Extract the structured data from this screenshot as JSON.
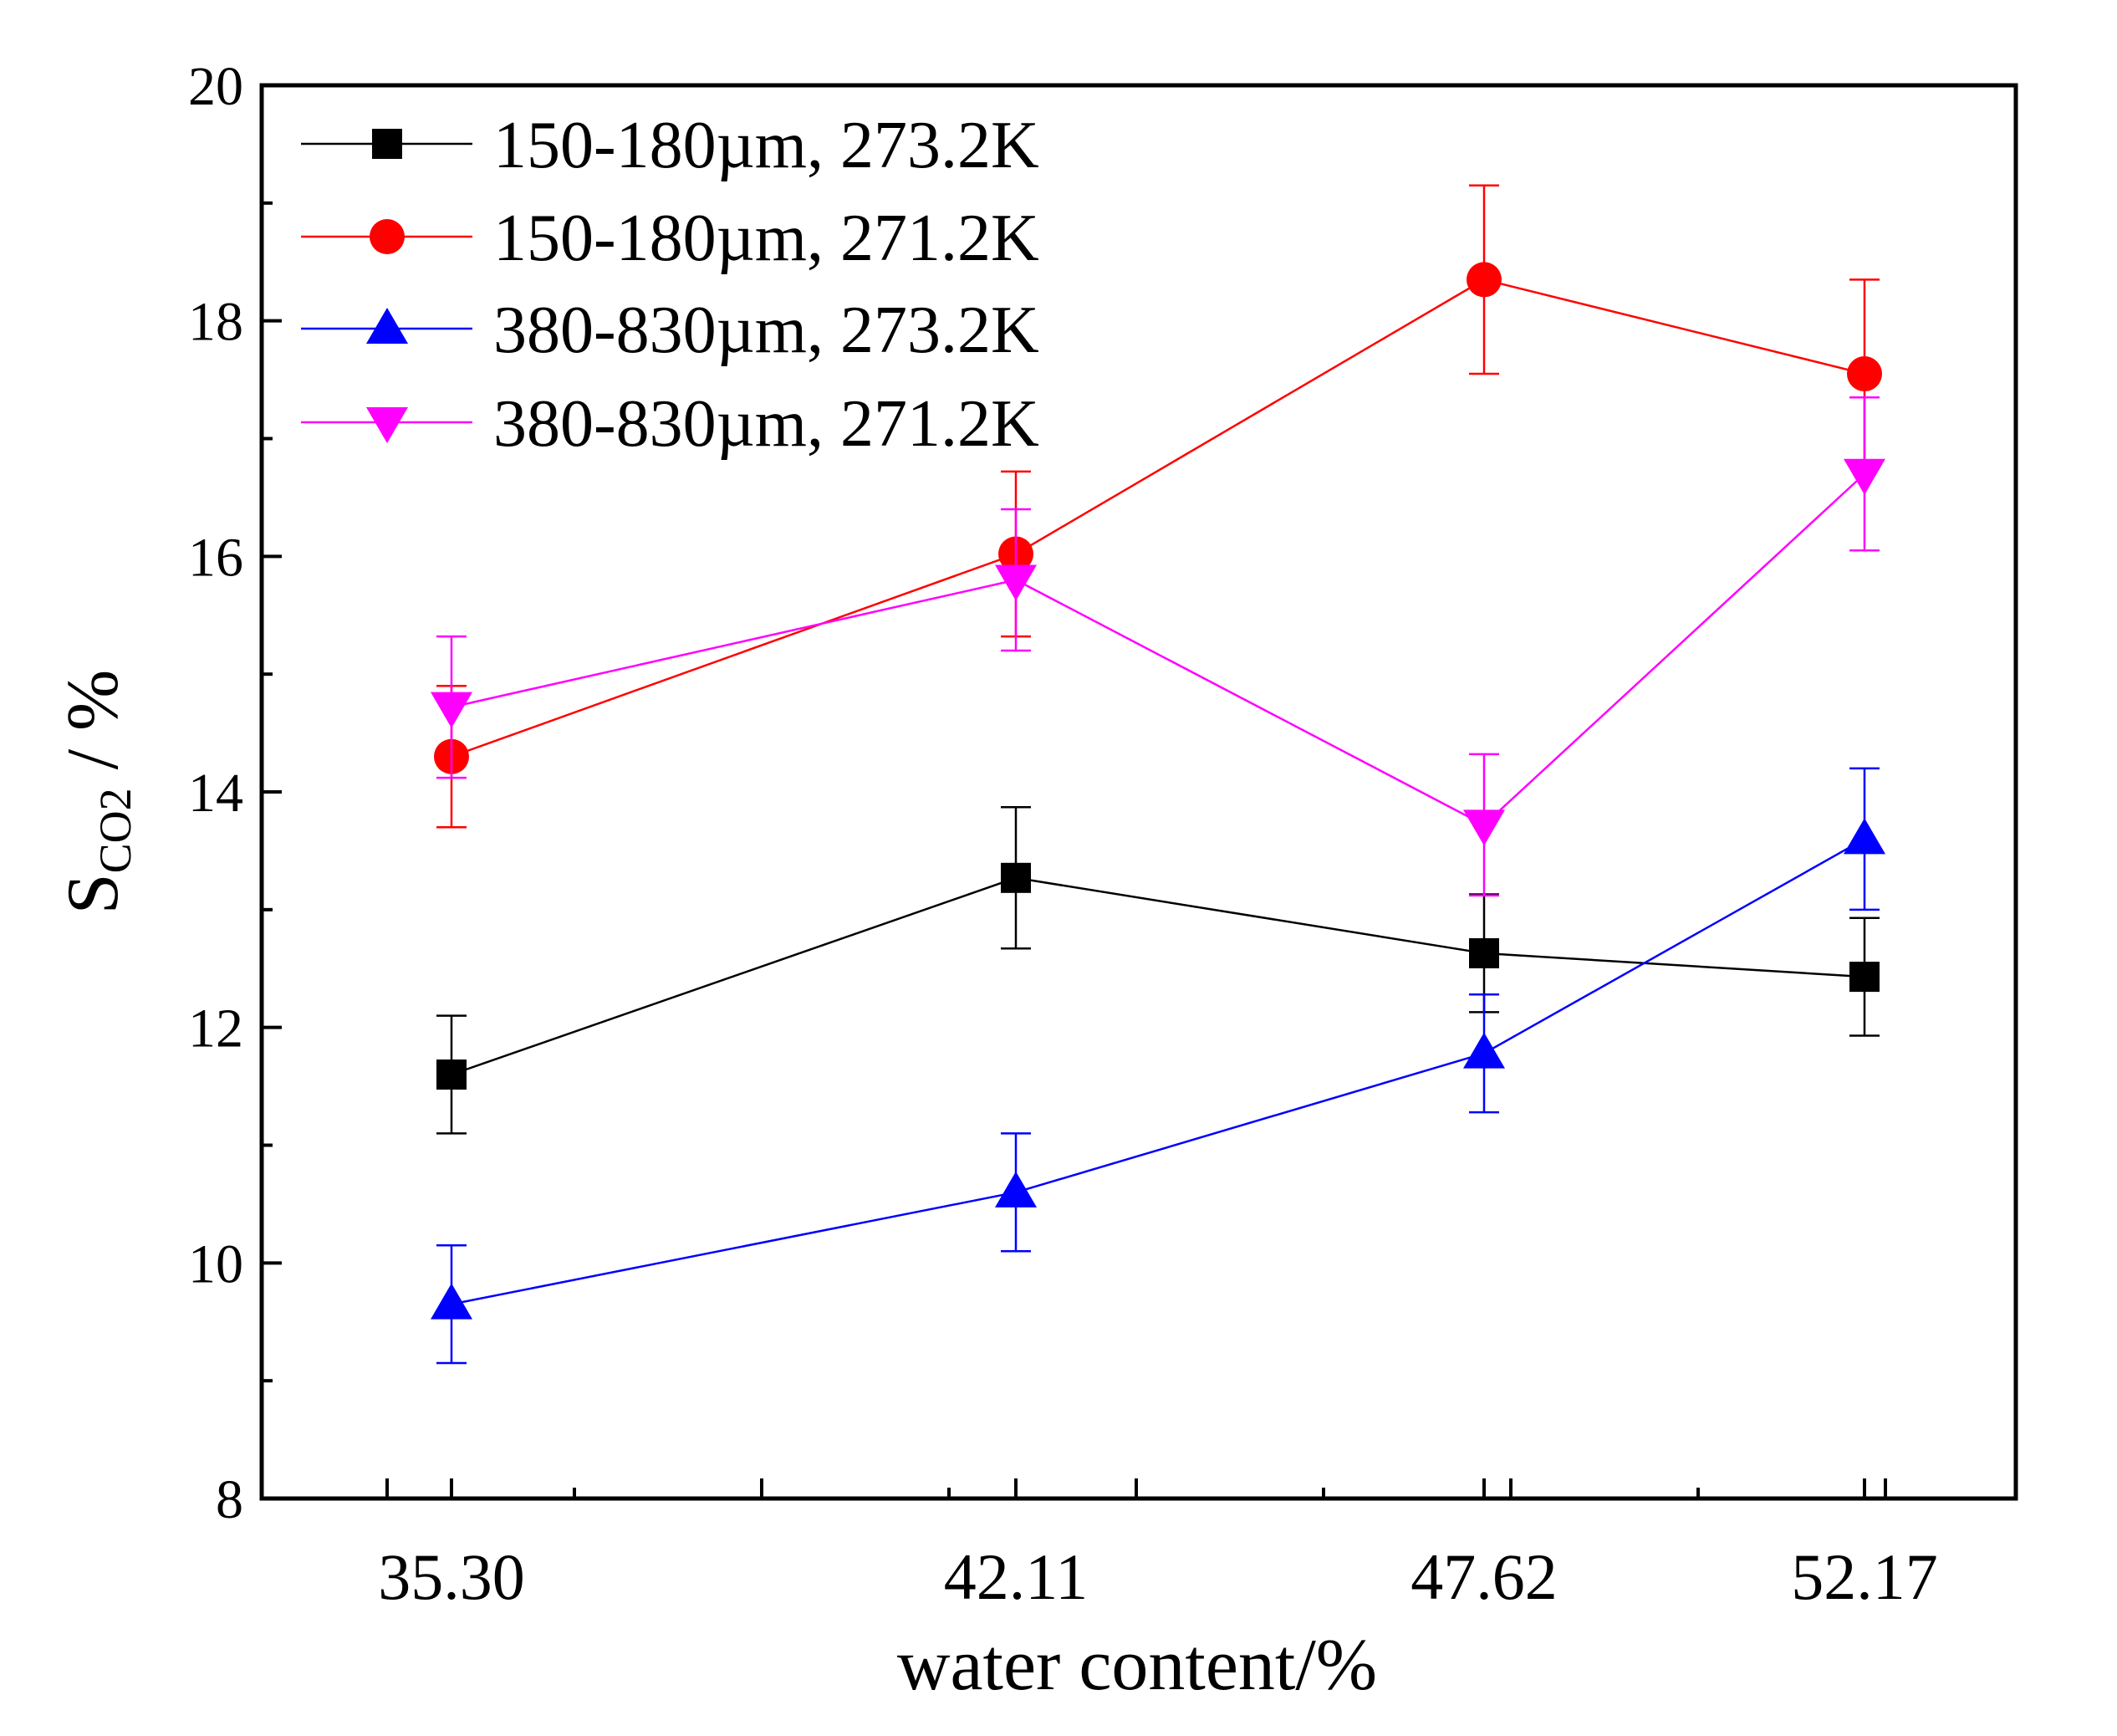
{
  "chart_data": {
    "type": "line",
    "title": "",
    "xlabel": "water content/%",
    "ylabel_main": "S",
    "ylabel_sub": "CO2",
    "ylabel_suffix": " / %",
    "categories": [
      "35.30",
      "42.11",
      "47.62",
      "52.17"
    ],
    "ylim": [
      8,
      20
    ],
    "yticks": [
      "8",
      "10",
      "12",
      "14",
      "16",
      "18",
      "20"
    ],
    "legend_position": "top-left",
    "series": [
      {
        "name": "150-180µm, 273.2K",
        "color": "#000000",
        "marker": "square",
        "values": [
          11.6,
          13.27,
          12.63,
          12.43
        ],
        "errors": [
          0.5,
          0.6,
          0.5,
          0.5
        ]
      },
      {
        "name": "150-180µm, 271.2K",
        "color": "#ff0000",
        "marker": "circle",
        "values": [
          14.3,
          16.02,
          18.35,
          17.55
        ],
        "errors": [
          0.6,
          0.7,
          0.8,
          0.8
        ]
      },
      {
        "name": "380-830µm, 273.2K",
        "color": "#0000ff",
        "marker": "triangle-up",
        "values": [
          9.65,
          10.6,
          11.78,
          13.6
        ],
        "errors": [
          0.5,
          0.5,
          0.5,
          0.6
        ]
      },
      {
        "name": "380-830µm, 271.2K",
        "color": "#ff00ff",
        "marker": "triangle-down",
        "values": [
          14.72,
          15.8,
          13.72,
          16.7
        ],
        "errors": [
          0.6,
          0.6,
          0.6,
          0.65
        ]
      }
    ]
  }
}
